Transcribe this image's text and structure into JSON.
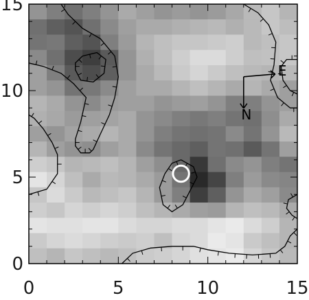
{
  "chart_data": {
    "type": "heatmap",
    "title": "",
    "xlabel": "",
    "ylabel": "",
    "xlim": [
      0,
      15
    ],
    "ylim": [
      0,
      15
    ],
    "grid": false,
    "colormap": "grayscale (white = low, black = high)",
    "x_ticks": [
      0,
      5,
      10,
      15
    ],
    "y_ticks": [
      0,
      5,
      10,
      15
    ],
    "x_tick_labels": [
      "0",
      "5",
      "10",
      "15"
    ],
    "y_tick_labels": [
      "0",
      "5",
      "10",
      "15"
    ],
    "cell_size": 1,
    "values_rows_top_to_bottom": [
      [
        0.45,
        0.55,
        0.62,
        0.55,
        0.45,
        0.35,
        0.4,
        0.45,
        0.42,
        0.45,
        0.42,
        0.36,
        0.28,
        0.22,
        0.3
      ],
      [
        0.62,
        0.7,
        0.75,
        0.62,
        0.5,
        0.4,
        0.35,
        0.35,
        0.32,
        0.3,
        0.28,
        0.32,
        0.28,
        0.22,
        0.26
      ],
      [
        0.6,
        0.58,
        0.7,
        0.75,
        0.55,
        0.42,
        0.3,
        0.25,
        0.22,
        0.22,
        0.2,
        0.18,
        0.28,
        0.25,
        0.22
      ],
      [
        0.5,
        0.62,
        0.78,
        0.85,
        0.72,
        0.45,
        0.32,
        0.25,
        0.18,
        0.12,
        0.12,
        0.18,
        0.25,
        0.24,
        0.22
      ],
      [
        0.4,
        0.55,
        0.72,
        0.78,
        0.7,
        0.45,
        0.35,
        0.28,
        0.2,
        0.15,
        0.2,
        0.25,
        0.28,
        0.3,
        0.28
      ],
      [
        0.4,
        0.45,
        0.6,
        0.58,
        0.5,
        0.4,
        0.35,
        0.35,
        0.3,
        0.25,
        0.3,
        0.35,
        0.3,
        0.35,
        0.4
      ],
      [
        0.3,
        0.35,
        0.45,
        0.5,
        0.42,
        0.4,
        0.4,
        0.45,
        0.42,
        0.4,
        0.45,
        0.55,
        0.55,
        0.45,
        0.4
      ],
      [
        0.32,
        0.36,
        0.42,
        0.4,
        0.38,
        0.35,
        0.45,
        0.5,
        0.55,
        0.58,
        0.55,
        0.6,
        0.62,
        0.48,
        0.35
      ],
      [
        0.4,
        0.45,
        0.38,
        0.35,
        0.3,
        0.35,
        0.45,
        0.55,
        0.6,
        0.62,
        0.6,
        0.5,
        0.6,
        0.45,
        0.28
      ],
      [
        0.3,
        0.4,
        0.45,
        0.48,
        0.4,
        0.35,
        0.5,
        0.6,
        0.65,
        0.7,
        0.6,
        0.62,
        0.72,
        0.6,
        0.4
      ],
      [
        0.18,
        0.22,
        0.3,
        0.28,
        0.25,
        0.3,
        0.4,
        0.48,
        0.65,
        0.88,
        0.62,
        0.5,
        0.45,
        0.55,
        0.6
      ],
      [
        0.08,
        0.15,
        0.25,
        0.35,
        0.28,
        0.3,
        0.35,
        0.42,
        0.6,
        0.95,
        0.82,
        0.55,
        0.42,
        0.5,
        0.52
      ],
      [
        0.22,
        0.12,
        0.2,
        0.28,
        0.25,
        0.22,
        0.3,
        0.42,
        0.55,
        0.85,
        0.7,
        0.45,
        0.35,
        0.4,
        0.5
      ],
      [
        0.18,
        0.22,
        0.15,
        0.18,
        0.15,
        0.18,
        0.25,
        0.3,
        0.35,
        0.4,
        0.42,
        0.3,
        0.25,
        0.28,
        0.35
      ],
      [
        0.08,
        0.1,
        0.1,
        0.08,
        0.08,
        0.12,
        0.15,
        0.15,
        0.12,
        0.12,
        0.08,
        0.05,
        0.12,
        0.18,
        0.3
      ],
      [
        0.2,
        0.15,
        0.12,
        0.15,
        0.18,
        0.2,
        0.18,
        0.25,
        0.15,
        0.12,
        0.05,
        0.08,
        0.2,
        0.25,
        0.3
      ],
      [
        0.25,
        0.3,
        0.22,
        0.25,
        0.28,
        0.25,
        0.2,
        0.18,
        0.15,
        0.1,
        0.08,
        0.05,
        0.15,
        0.22,
        0.28
      ]
    ],
    "marker": {
      "type": "circle",
      "x": 8.5,
      "y": 5.2,
      "radius": 0.45,
      "color": "#ffffff"
    },
    "compass": {
      "origin": [
        12.0,
        10.8
      ],
      "n_label": "N",
      "e_label": "E"
    },
    "contours": [
      {
        "name": "left-outer",
        "points": [
          [
            1.8,
            15
          ],
          [
            2.2,
            14.4
          ],
          [
            3.0,
            13.6
          ],
          [
            4.0,
            13.0
          ],
          [
            4.8,
            12.0
          ],
          [
            5.0,
            10.8
          ],
          [
            4.8,
            9.6
          ],
          [
            4.5,
            8.6
          ],
          [
            4.0,
            7.5
          ],
          [
            3.6,
            6.6
          ],
          [
            3.4,
            6.4
          ],
          [
            2.9,
            6.4
          ],
          [
            2.6,
            6.8
          ],
          [
            2.6,
            7.2
          ],
          [
            2.9,
            8.2
          ],
          [
            3.2,
            9.6
          ],
          [
            2.5,
            10.4
          ],
          [
            1.8,
            11.0
          ],
          [
            0.8,
            11.4
          ],
          [
            0.0,
            11.6
          ]
        ]
      },
      {
        "name": "left-inner",
        "points": [
          [
            3.0,
            12.0
          ],
          [
            3.8,
            12.2
          ],
          [
            4.3,
            11.8
          ],
          [
            4.2,
            11.0
          ],
          [
            3.6,
            10.5
          ],
          [
            2.9,
            10.6
          ],
          [
            2.6,
            11.2
          ],
          [
            2.6,
            11.6
          ],
          [
            3.0,
            12.0
          ]
        ]
      },
      {
        "name": "left-lower",
        "points": [
          [
            0.0,
            4.0
          ],
          [
            1.0,
            4.3
          ],
          [
            1.6,
            5.2
          ],
          [
            1.6,
            6.3
          ],
          [
            1.3,
            7.0
          ],
          [
            0.8,
            7.8
          ],
          [
            0.3,
            8.4
          ],
          [
            0.0,
            8.6
          ]
        ]
      },
      {
        "name": "center-blob",
        "points": [
          [
            8.5,
            6.0
          ],
          [
            9.2,
            5.6
          ],
          [
            9.4,
            5.0
          ],
          [
            9.0,
            4.2
          ],
          [
            8.6,
            3.4
          ],
          [
            8.0,
            3.0
          ],
          [
            7.5,
            3.4
          ],
          [
            7.3,
            4.4
          ],
          [
            7.6,
            5.2
          ],
          [
            8.0,
            5.8
          ],
          [
            8.5,
            6.0
          ]
        ]
      },
      {
        "name": "top-right",
        "points": [
          [
            12.0,
            15.0
          ],
          [
            12.8,
            14.5
          ],
          [
            13.4,
            13.8
          ],
          [
            13.8,
            12.8
          ],
          [
            13.7,
            11.5
          ],
          [
            13.5,
            10.6
          ],
          [
            13.9,
            9.6
          ],
          [
            14.6,
            9.0
          ],
          [
            15.0,
            9.0
          ]
        ]
      },
      {
        "name": "right-loop",
        "points": [
          [
            15.0,
            11.8
          ],
          [
            14.4,
            11.8
          ],
          [
            14.1,
            11.4
          ],
          [
            14.2,
            10.6
          ],
          [
            14.6,
            10.0
          ],
          [
            15.0,
            9.8
          ]
        ]
      },
      {
        "name": "bottom-arc",
        "points": [
          [
            5.2,
            0.0
          ],
          [
            5.8,
            0.6
          ],
          [
            6.8,
            0.9
          ],
          [
            8.0,
            1.0
          ],
          [
            9.2,
            1.0
          ],
          [
            10.0,
            0.8
          ],
          [
            11.2,
            0.6
          ],
          [
            12.5,
            0.5
          ],
          [
            13.8,
            0.6
          ],
          [
            14.3,
            1.0
          ],
          [
            14.6,
            1.6
          ],
          [
            15.0,
            2.0
          ]
        ]
      },
      {
        "name": "right-lower",
        "points": [
          [
            15.0,
            4.0
          ],
          [
            14.5,
            3.7
          ],
          [
            14.4,
            3.2
          ],
          [
            14.7,
            2.8
          ],
          [
            15.0,
            2.6
          ]
        ]
      }
    ]
  }
}
